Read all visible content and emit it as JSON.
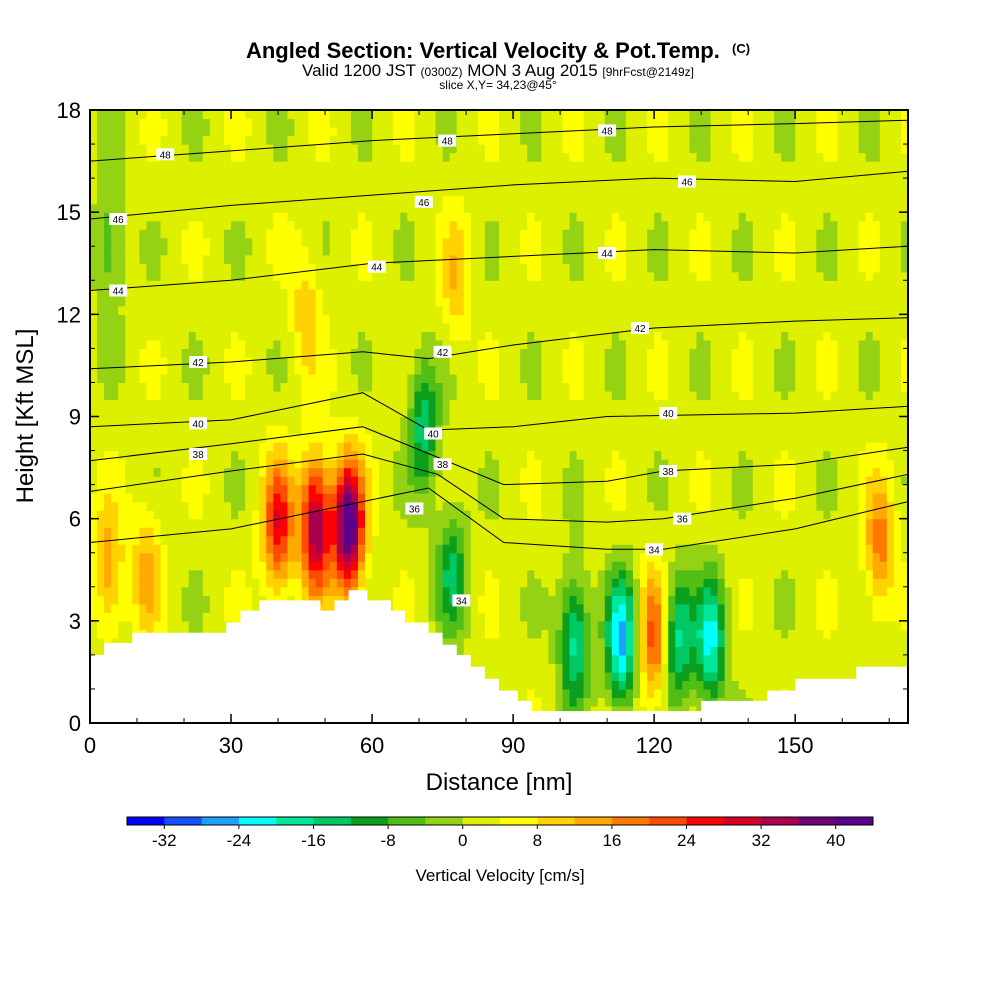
{
  "title": {
    "main": "Angled Section: Vertical Velocity & Pot.Temp.",
    "main_suffix": "(C)",
    "valid_prefix": "Valid 1200 JST",
    "valid_z": "(0300Z)",
    "valid_date": "MON 3 Aug 2015",
    "valid_fcst": "[9hrFcst@2149z]",
    "slice": "slice X,Y= 34,23@45°"
  },
  "chart_data": {
    "type": "heatmap",
    "xlabel": "Distance [nm]",
    "ylabel": "Height [Kft MSL]",
    "xlim": [
      0,
      174
    ],
    "ylim": [
      0,
      18
    ],
    "x_ticks": [
      "0",
      "30",
      "60",
      "90",
      "120",
      "150"
    ],
    "x_tick_values": [
      0,
      30,
      60,
      90,
      120,
      150
    ],
    "y_ticks": [
      "0",
      "3",
      "6",
      "9",
      "12",
      "15",
      "18"
    ],
    "y_tick_values": [
      0,
      3,
      6,
      9,
      12,
      15,
      18
    ],
    "colorbar": {
      "label": "Vertical Velocity [cm/s]",
      "min": -36,
      "max": 44,
      "step": 4,
      "tick_values": [
        -32,
        -24,
        -16,
        -8,
        0,
        8,
        16,
        24,
        32,
        40
      ],
      "tick_labels": [
        "-32",
        "-24",
        "-16",
        "-8",
        "0",
        "8",
        "16",
        "24",
        "32",
        "40"
      ],
      "colors": [
        "#0000ff",
        "#1450ff",
        "#1ea0ff",
        "#00ffff",
        "#00e69b",
        "#00c864",
        "#0aa01e",
        "#50be14",
        "#96d214",
        "#dcf000",
        "#ffff00",
        "#ffd200",
        "#ffaa00",
        "#ff7800",
        "#ff4b00",
        "#ff0000",
        "#d70028",
        "#aa0050",
        "#6e0078",
        "#5a008c"
      ]
    },
    "vertical_velocity_features": [
      {
        "x": 4,
        "y": 4.5,
        "value": 13
      },
      {
        "x": 12,
        "y": 4.5,
        "value": 11
      },
      {
        "x": 40,
        "y": 5.8,
        "value": 25
      },
      {
        "x": 48,
        "y": 5.8,
        "value": 35
      },
      {
        "x": 55,
        "y": 5.8,
        "value": 43
      },
      {
        "x": 71,
        "y": 8.8,
        "value": -17
      },
      {
        "x": 77,
        "y": 4.5,
        "value": -14
      },
      {
        "x": 103,
        "y": 2.5,
        "value": -20
      },
      {
        "x": 113,
        "y": 2.4,
        "value": -27
      },
      {
        "x": 120,
        "y": 2.5,
        "value": 20
      },
      {
        "x": 125,
        "y": 2.5,
        "value": -20
      },
      {
        "x": 132,
        "y": 2.4,
        "value": -23
      },
      {
        "x": 168,
        "y": 5.2,
        "value": 16
      },
      {
        "x": 4,
        "y": 14,
        "value": -10
      },
      {
        "x": 46,
        "y": 12,
        "value": 9
      },
      {
        "x": 78,
        "y": 13,
        "value": 9
      }
    ],
    "potential_temperature_contours": [
      {
        "value": 34,
        "label": "34",
        "points": [
          [
            0,
            5.3
          ],
          [
            30,
            5.7
          ],
          [
            58,
            6.5
          ],
          [
            72,
            6.9
          ],
          [
            88,
            5.3
          ],
          [
            110,
            5.1
          ],
          [
            122,
            5.1
          ],
          [
            150,
            5.7
          ],
          [
            174,
            6.5
          ]
        ]
      },
      {
        "value": 36,
        "label": "36",
        "points": [
          [
            0,
            6.8
          ],
          [
            30,
            7.4
          ],
          [
            58,
            7.9
          ],
          [
            74,
            7.3
          ],
          [
            88,
            6.0
          ],
          [
            110,
            5.9
          ],
          [
            122,
            6.0
          ],
          [
            150,
            6.6
          ],
          [
            174,
            7.3
          ]
        ]
      },
      {
        "value": 38,
        "label": "38",
        "points": [
          [
            0,
            7.7
          ],
          [
            30,
            8.2
          ],
          [
            58,
            8.7
          ],
          [
            74,
            7.8
          ],
          [
            88,
            7.0
          ],
          [
            110,
            7.1
          ],
          [
            122,
            7.4
          ],
          [
            150,
            7.6
          ],
          [
            174,
            8.1
          ]
        ]
      },
      {
        "value": 40,
        "label": "40",
        "points": [
          [
            0,
            8.7
          ],
          [
            30,
            8.9
          ],
          [
            58,
            9.7
          ],
          [
            72,
            8.6
          ],
          [
            90,
            8.7
          ],
          [
            110,
            9.0
          ],
          [
            150,
            9.1
          ],
          [
            174,
            9.3
          ]
        ]
      },
      {
        "value": 42,
        "label": "42",
        "points": [
          [
            0,
            10.4
          ],
          [
            30,
            10.6
          ],
          [
            58,
            10.9
          ],
          [
            72,
            10.7
          ],
          [
            90,
            11.1
          ],
          [
            120,
            11.6
          ],
          [
            150,
            11.8
          ],
          [
            174,
            11.9
          ]
        ]
      },
      {
        "value": 44,
        "label": "44",
        "points": [
          [
            0,
            12.7
          ],
          [
            30,
            13.0
          ],
          [
            60,
            13.5
          ],
          [
            90,
            13.7
          ],
          [
            120,
            13.9
          ],
          [
            150,
            13.8
          ],
          [
            174,
            14.0
          ]
        ]
      },
      {
        "value": 46,
        "label": "46",
        "points": [
          [
            0,
            14.8
          ],
          [
            30,
            15.2
          ],
          [
            60,
            15.5
          ],
          [
            90,
            15.8
          ],
          [
            120,
            16.0
          ],
          [
            150,
            15.9
          ],
          [
            174,
            16.2
          ]
        ]
      },
      {
        "value": 48,
        "label": "48",
        "points": [
          [
            0,
            16.5
          ],
          [
            30,
            16.8
          ],
          [
            60,
            17.1
          ],
          [
            90,
            17.3
          ],
          [
            120,
            17.5
          ],
          [
            150,
            17.6
          ],
          [
            174,
            17.7
          ]
        ]
      }
    ],
    "theta_label_positions": [
      {
        "x": 79,
        "y": 3.6,
        "label": "34"
      },
      {
        "x": 120,
        "y": 5.1,
        "label": "34"
      },
      {
        "x": 69,
        "y": 6.3,
        "label": "36"
      },
      {
        "x": 126,
        "y": 6.0,
        "label": "36"
      },
      {
        "x": 23,
        "y": 7.9,
        "label": "38"
      },
      {
        "x": 75,
        "y": 7.6,
        "label": "38"
      },
      {
        "x": 123,
        "y": 7.4,
        "label": "38"
      },
      {
        "x": 23,
        "y": 8.8,
        "label": "40"
      },
      {
        "x": 73,
        "y": 8.5,
        "label": "40"
      },
      {
        "x": 123,
        "y": 9.1,
        "label": "40"
      },
      {
        "x": 23,
        "y": 10.6,
        "label": "42"
      },
      {
        "x": 75,
        "y": 10.9,
        "label": "42"
      },
      {
        "x": 117,
        "y": 11.6,
        "label": "42"
      },
      {
        "x": 6,
        "y": 12.7,
        "label": "44"
      },
      {
        "x": 61,
        "y": 13.4,
        "label": "44"
      },
      {
        "x": 110,
        "y": 13.8,
        "label": "44"
      },
      {
        "x": 6,
        "y": 14.8,
        "label": "46"
      },
      {
        "x": 71,
        "y": 15.3,
        "label": "46"
      },
      {
        "x": 127,
        "y": 15.9,
        "label": "46"
      },
      {
        "x": 16,
        "y": 16.7,
        "label": "48"
      },
      {
        "x": 76,
        "y": 17.1,
        "label": "48"
      },
      {
        "x": 110,
        "y": 17.4,
        "label": "48"
      }
    ],
    "terrain": [
      [
        0,
        2.0
      ],
      [
        3,
        2.0
      ],
      [
        3,
        2.35
      ],
      [
        9,
        2.35
      ],
      [
        9,
        2.65
      ],
      [
        29,
        2.65
      ],
      [
        29,
        2.95
      ],
      [
        32,
        2.95
      ],
      [
        32,
        3.3
      ],
      [
        36,
        3.3
      ],
      [
        36,
        3.6
      ],
      [
        49,
        3.6
      ],
      [
        49,
        3.3
      ],
      [
        52,
        3.3
      ],
      [
        52,
        3.6
      ],
      [
        55,
        3.6
      ],
      [
        55,
        3.9
      ],
      [
        59,
        3.9
      ],
      [
        59,
        3.6
      ],
      [
        64,
        3.6
      ],
      [
        64,
        3.3
      ],
      [
        67,
        3.3
      ],
      [
        67,
        2.95
      ],
      [
        72,
        2.95
      ],
      [
        72,
        2.65
      ],
      [
        75,
        2.65
      ],
      [
        75,
        2.3
      ],
      [
        78,
        2.3
      ],
      [
        78,
        2.0
      ],
      [
        81,
        2.0
      ],
      [
        81,
        1.65
      ],
      [
        84,
        1.65
      ],
      [
        84,
        1.3
      ],
      [
        87,
        1.3
      ],
      [
        87,
        0.95
      ],
      [
        91,
        0.95
      ],
      [
        91,
        0.65
      ],
      [
        94,
        0.65
      ],
      [
        94,
        0.35
      ],
      [
        130,
        0.35
      ],
      [
        130,
        0.65
      ],
      [
        144,
        0.65
      ],
      [
        144,
        0.95
      ],
      [
        150,
        0.95
      ],
      [
        150,
        1.3
      ],
      [
        163,
        1.3
      ],
      [
        163,
        1.65
      ],
      [
        174,
        1.65
      ]
    ]
  }
}
